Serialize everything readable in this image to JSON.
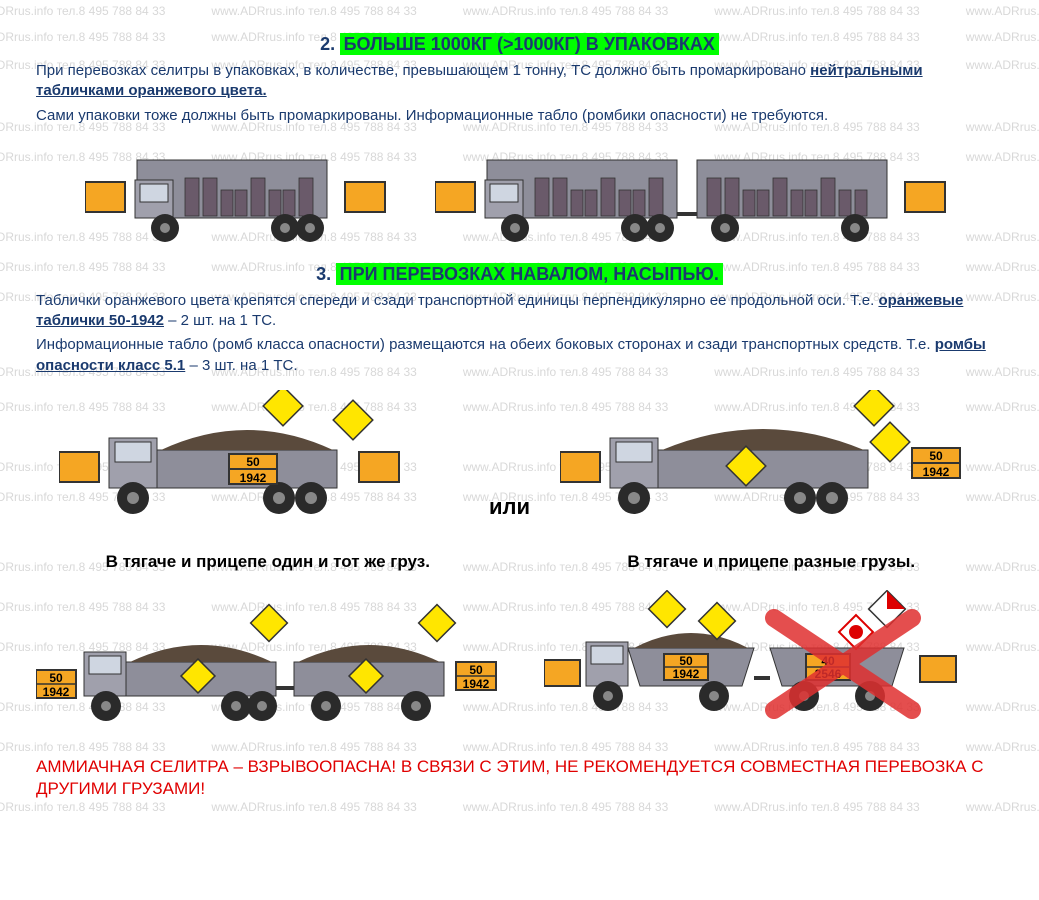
{
  "watermark_text": "www.ADRrus.info   тел.8 495 788 84 33",
  "watermark_color": "#d8d8d8",
  "colors": {
    "highlight_bg": "#00ff00",
    "text_main": "#1a3a6e",
    "text_warn": "#e00000",
    "orange_plate": "#f5a623",
    "diamond_fill": "#ffe600",
    "truck_body": "#8e8e9a",
    "truck_cab": "#a0a0ac",
    "cargo": "#5a4a3c",
    "wheel": "#2a2a2a",
    "bg": "#ffffff"
  },
  "section2": {
    "heading_num": "2.",
    "heading_text": "БОЛЬШЕ 1000КГ (>1000КГ) В УПАКОВКАХ",
    "p1_a": "При перевозках селитры в упаковках, в количестве, превышающем 1 тонну, ТС должно быть промаркировано ",
    "p1_b": "нейтральными табличками оранжевого цвета.",
    "p2": "Сами упаковки тоже должны быть промаркированы. Информационные табло (ромбики опасности) не требуются."
  },
  "section3": {
    "heading_num": "3.",
    "heading_text": "ПРИ ПЕРЕВОЗКАХ НАВАЛОМ, НАСЫПЬЮ.",
    "p1_a": "Таблички оранжевого цвета крепятся спереди и сзади транспортной единицы перпендикулярно ее продольной оси.  Т.е. ",
    "p1_b": "оранжевые таблички 50-1942",
    "p1_c": " – 2 шт. на 1 ТС.",
    "p2_a": "Информационные табло (ромб класса опасности) размещаются на обеих боковых сторонах и сзади транспортных средств.  Т.е. ",
    "p2_b": "ромбы опасности класс 5.1",
    "p2_c": " – 3 шт. на 1 ТС.",
    "or_label": "или",
    "plate_top": "50",
    "plate_bottom": "1942",
    "plate2_top": "40",
    "plate2_bottom": "2546",
    "caption_same": "В тягаче и прицепе один и тот же груз.",
    "caption_diff": "В тягаче и прицепе разные грузы."
  },
  "warning": "АММИАЧНАЯ СЕЛИТРА – ВЗРЫВООПАСНА! В СВЯЗИ С ЭТИМ, НЕ РЕКОМЕНДУЕТСЯ СОВМЕСТНАЯ ПЕРЕВОЗКА С ДРУГИМИ ГРУЗАМИ!"
}
